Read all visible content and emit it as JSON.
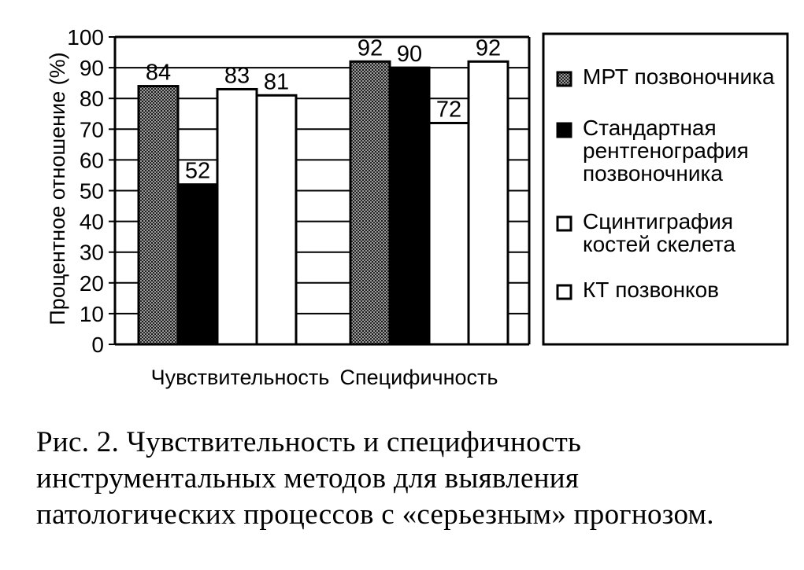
{
  "chart_data": {
    "type": "bar",
    "title": "",
    "xlabel": "",
    "ylabel": "Процентное отношение (%)",
    "ylim": [
      0,
      100
    ],
    "yticks": [
      0,
      10,
      20,
      30,
      40,
      50,
      60,
      70,
      80,
      90,
      100
    ],
    "categories": [
      "Чувствительность",
      "Специфичность"
    ],
    "series": [
      {
        "name": "МРТ позвоночника",
        "values": [
          84,
          92
        ],
        "fill": "dots",
        "color": "#333333"
      },
      {
        "name": "Стандартная рентгенография позвоночника",
        "values": [
          52,
          90
        ],
        "fill": "solid",
        "color": "#000000"
      },
      {
        "name": "Сцинтиграфия костей скелета",
        "values": [
          83,
          72
        ],
        "fill": "white",
        "color": "#ffffff"
      },
      {
        "name": "КТ позвонков",
        "values": [
          81,
          92
        ],
        "fill": "white",
        "color": "#ffffff"
      }
    ],
    "legend": {
      "position": "right",
      "lines": [
        [
          "МРТ позвоночника"
        ],
        [
          "Стандартная",
          "рентгенография",
          "позвоночника"
        ],
        [
          "Сцинтиграфия",
          "костей скелета"
        ],
        [
          "КТ позвонков"
        ]
      ]
    },
    "grid": {
      "horizontal": true
    }
  },
  "caption": {
    "figure": "Рис. 2.",
    "text": "Чувствительность и специфичность инструментальных методов для выявления патологических процессов с «серьезным» прогнозом."
  }
}
